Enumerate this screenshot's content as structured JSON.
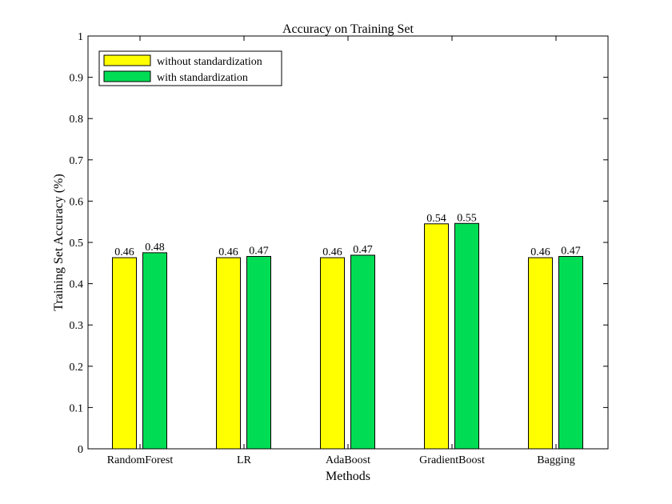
{
  "chart_data": {
    "type": "bar",
    "title": "Accuracy on Training Set",
    "xlabel": "Methods",
    "ylabel": "Training Set Accuracy (%)",
    "ylim": [
      0,
      1
    ],
    "yticks": [
      "0",
      "0.1",
      "0.2",
      "0.3",
      "0.4",
      "0.5",
      "0.6",
      "0.7",
      "0.8",
      "0.9",
      "1"
    ],
    "categories": [
      "RandomForest",
      "LR",
      "AdaBoost",
      "GradientBoost",
      "Bagging"
    ],
    "series": [
      {
        "name": "without standardization",
        "color": "#ffff00",
        "values": [
          0.463,
          0.463,
          0.463,
          0.545,
          0.463
        ],
        "labels": [
          "0.46",
          "0.46",
          "0.46",
          "0.54",
          "0.46"
        ]
      },
      {
        "name": "with standardization",
        "color": "#00dd55",
        "values": [
          0.475,
          0.466,
          0.469,
          0.546,
          0.466
        ],
        "labels": [
          "0.48",
          "0.47",
          "0.47",
          "0.55",
          "0.47"
        ]
      }
    ],
    "legend": "top-left",
    "grid": false
  }
}
